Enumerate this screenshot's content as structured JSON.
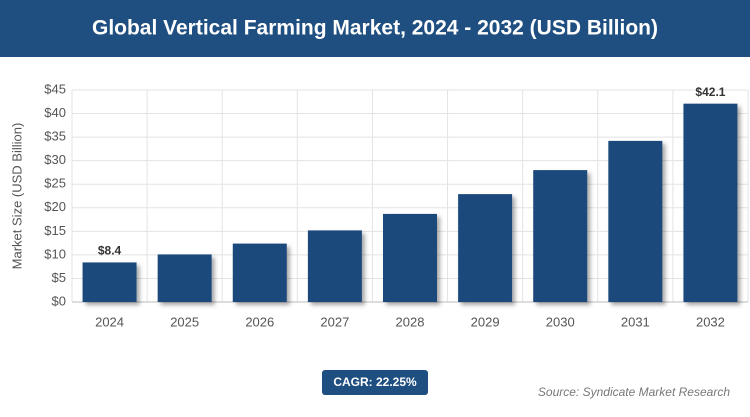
{
  "chart_data": {
    "type": "bar",
    "title": "Global Vertical Farming Market, 2024 - 2032 (USD Billion)",
    "y_label": "Market Size (USD Billion)",
    "categories": [
      "2024",
      "2025",
      "2026",
      "2027",
      "2028",
      "2029",
      "2030",
      "2031",
      "2032"
    ],
    "values": [
      8.4,
      10.1,
      12.4,
      15.2,
      18.7,
      22.9,
      28.0,
      34.2,
      42.1
    ],
    "value_labels": [
      "$8.4",
      null,
      null,
      null,
      null,
      null,
      null,
      null,
      "$42.1"
    ],
    "color": "#1f4a7c",
    "ylim": [
      0,
      45
    ],
    "yticks": [
      {
        "value": 0,
        "label": "$0"
      },
      {
        "value": 5,
        "label": "$5"
      },
      {
        "value": 10,
        "label": "$10"
      },
      {
        "value": 15,
        "label": "$15"
      },
      {
        "value": 20,
        "label": "$20"
      },
      {
        "value": 25,
        "label": "$25"
      },
      {
        "value": 30,
        "label": "$30"
      },
      {
        "value": 35,
        "label": "$35"
      },
      {
        "value": 40,
        "label": "$40"
      },
      {
        "value": 45,
        "label": "$45"
      }
    ],
    "grid": true,
    "badge": "CAGR: 22.25%",
    "source": "Source: Syndicate Market Research"
  }
}
